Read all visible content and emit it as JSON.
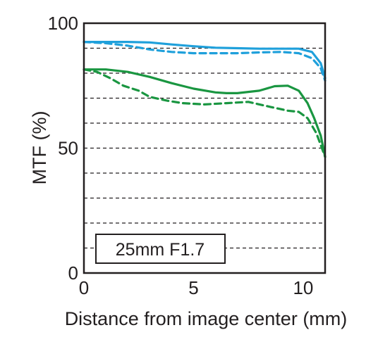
{
  "chart_data": {
    "type": "line",
    "title": "",
    "xlabel": "Distance from image center (mm)",
    "ylabel": "MTF (%)",
    "xlim": [
      0,
      11
    ],
    "ylim": [
      0,
      100
    ],
    "x_ticks": [
      "0",
      "5",
      "10"
    ],
    "y_ticks": [
      "0",
      "50",
      "100"
    ],
    "grid": "horizontal dashed lines every 10%",
    "annotation": "25mm F1.7",
    "series": [
      {
        "color": "#1fa0db",
        "dash": "solid",
        "x": [
          0,
          1,
          2,
          3,
          4,
          5,
          6,
          7,
          8,
          9,
          9.8,
          10.4,
          10.8,
          11
        ],
        "values": [
          92.5,
          92.5,
          92.5,
          92.3,
          91.5,
          90.8,
          90.2,
          90.0,
          89.8,
          89.8,
          89.8,
          88.5,
          84,
          78
        ]
      },
      {
        "color": "#1fa0db",
        "dash": "dashed",
        "x": [
          0,
          1,
          2,
          3,
          4,
          5,
          6,
          7,
          8,
          9,
          9.8,
          10.4,
          10.8,
          11
        ],
        "values": [
          92.5,
          92.0,
          91.0,
          89.5,
          88.5,
          88.0,
          88.0,
          88.0,
          88.3,
          88.5,
          88.0,
          86.0,
          82,
          77
        ]
      },
      {
        "color": "#1a9641",
        "dash": "solid",
        "x": [
          0,
          1,
          2,
          3,
          4,
          5,
          6,
          6.5,
          7,
          8,
          8.7,
          9.3,
          9.8,
          10.2,
          10.5,
          10.8,
          11
        ],
        "values": [
          81.5,
          81.5,
          80.5,
          78.5,
          76.0,
          73.8,
          72.3,
          72.0,
          72.0,
          73.0,
          74.8,
          75.0,
          73.0,
          68.0,
          62.0,
          55.0,
          46.5
        ]
      },
      {
        "color": "#1a9641",
        "dash": "dashed",
        "x": [
          0,
          0.6,
          1.2,
          1.8,
          2.5,
          3,
          3.8,
          4.5,
          5.5,
          6.5,
          7.5,
          8.5,
          9.3,
          9.8,
          10.2,
          10.6,
          11
        ],
        "values": [
          81.5,
          80.5,
          78.0,
          75.0,
          73.0,
          70.5,
          69.0,
          68.0,
          67.5,
          68.0,
          68.5,
          66.5,
          65.0,
          64.5,
          62.0,
          56.0,
          46.5
        ]
      }
    ]
  }
}
